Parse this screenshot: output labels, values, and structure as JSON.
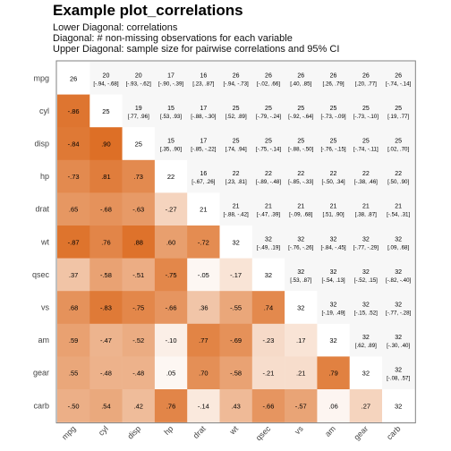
{
  "chart_data": {
    "type": "heatmap",
    "title": "Example plot_correlations",
    "subtitle_lines": [
      "Lower Diagonal: correlations",
      "Diagonal: # non-missing observations for each variable",
      "Upper Diagonal: sample size for pairwise correlations and 95% CI"
    ],
    "variables": [
      "mpg",
      "cyl",
      "disp",
      "hp",
      "drat",
      "wt",
      "qsec",
      "vs",
      "am",
      "gear",
      "carb"
    ],
    "lower_labels": [
      [],
      [
        "-.86"
      ],
      [
        "-.84",
        ".90"
      ],
      [
        "-.73",
        ".81",
        ".73"
      ],
      [
        ".65",
        "-.68",
        "-.63",
        "-.27"
      ],
      [
        "-.87",
        ".76",
        ".88",
        ".60",
        "-.72"
      ],
      [
        ".37",
        "-.58",
        "-.51",
        "-.75",
        "-.05",
        "-.17"
      ],
      [
        ".68",
        "-.83",
        "-.75",
        "-.66",
        ".36",
        "-.55",
        ".74"
      ],
      [
        ".59",
        "-.47",
        "-.52",
        "-.10",
        ".77",
        "-.69",
        "-.23",
        ".17"
      ],
      [
        ".55",
        "-.48",
        "-.48",
        ".05",
        ".70",
        "-.58",
        "-.21",
        ".21",
        ".79"
      ],
      [
        "-.50",
        ".54",
        ".42",
        ".76",
        "-.14",
        ".43",
        "-.66",
        "-.57",
        ".06",
        ".27"
      ]
    ],
    "lower_values": [
      [],
      [
        -0.86
      ],
      [
        -0.84,
        0.9
      ],
      [
        -0.73,
        0.81,
        0.73
      ],
      [
        0.65,
        -0.68,
        -0.63,
        -0.27
      ],
      [
        -0.87,
        0.76,
        0.88,
        0.6,
        -0.72
      ],
      [
        0.37,
        -0.58,
        -0.51,
        -0.75,
        -0.05,
        -0.17
      ],
      [
        0.68,
        -0.83,
        -0.75,
        -0.66,
        0.36,
        -0.55,
        0.74
      ],
      [
        0.59,
        -0.47,
        -0.52,
        -0.1,
        0.77,
        -0.69,
        -0.23,
        0.17
      ],
      [
        0.55,
        -0.48,
        -0.48,
        0.05,
        0.7,
        -0.58,
        -0.21,
        0.21,
        0.79
      ],
      [
        -0.5,
        0.54,
        0.42,
        0.76,
        -0.14,
        0.43,
        -0.66,
        -0.57,
        0.06,
        0.27
      ]
    ],
    "diagonal": [
      "26",
      "25",
      "25",
      "22",
      "21",
      "32",
      "32",
      "32",
      "32",
      "32",
      "32"
    ],
    "upper": [
      [
        null,
        [
          "20",
          "[-.94, -.68]"
        ],
        [
          "20",
          "[-.93, -.62]"
        ],
        [
          "17",
          "[-.90, -.39]"
        ],
        [
          "16",
          "[.23, .87]"
        ],
        [
          "26",
          "[-.94, -.73]"
        ],
        [
          "26",
          "[-.02, .66]"
        ],
        [
          "26",
          "[.40, .85]"
        ],
        [
          "26",
          "[.26, .79]"
        ],
        [
          "26",
          "[.20, .77]"
        ],
        [
          "26",
          "[-.74, -.14]"
        ]
      ],
      [
        null,
        null,
        [
          "19",
          "[.77, .96]"
        ],
        [
          "15",
          "[.53, .93]"
        ],
        [
          "17",
          "[-.88, -.30]"
        ],
        [
          "25",
          "[.52, .89]"
        ],
        [
          "25",
          "[-.79, -.24]"
        ],
        [
          "25",
          "[-.92, -.64]"
        ],
        [
          "25",
          "[-.73, -.09]"
        ],
        [
          "25",
          "[-.73, -.10]"
        ],
        [
          "25",
          "[.19, .77]"
        ]
      ],
      [
        null,
        null,
        null,
        [
          "15",
          "[.35, .90]"
        ],
        [
          "17",
          "[-.85, -.22]"
        ],
        [
          "25",
          "[.74, .94]"
        ],
        [
          "25",
          "[-.75, -.14]"
        ],
        [
          "25",
          "[-.88, -.50]"
        ],
        [
          "25",
          "[-.76, -.15]"
        ],
        [
          "25",
          "[-.74, -.11]"
        ],
        [
          "25",
          "[.02, .70]"
        ]
      ],
      [
        null,
        null,
        null,
        null,
        [
          "16",
          "[-.67, .26]"
        ],
        [
          "22",
          "[.23, .81]"
        ],
        [
          "22",
          "[-.89, -.48]"
        ],
        [
          "22",
          "[-.85, -.33]"
        ],
        [
          "22",
          "[-.50, .34]"
        ],
        [
          "22",
          "[-.38, .46]"
        ],
        [
          "22",
          "[.50, .90]"
        ]
      ],
      [
        null,
        null,
        null,
        null,
        null,
        [
          "21",
          "[-.88, -.42]"
        ],
        [
          "21",
          "[-.47, .39]"
        ],
        [
          "21",
          "[-.09, .68]"
        ],
        [
          "21",
          "[.51, .90]"
        ],
        [
          "21",
          "[.38, .87]"
        ],
        [
          "21",
          "[-.54, .31]"
        ]
      ],
      [
        null,
        null,
        null,
        null,
        null,
        null,
        [
          "32",
          "[-.49, .19]"
        ],
        [
          "32",
          "[-.76, -.26]"
        ],
        [
          "32",
          "[-.84, -.45]"
        ],
        [
          "32",
          "[-.77, -.29]"
        ],
        [
          "32",
          "[.09, .68]"
        ]
      ],
      [
        null,
        null,
        null,
        null,
        null,
        null,
        null,
        [
          "32",
          "[.53, .87]"
        ],
        [
          "32",
          "[-.54, .13]"
        ],
        [
          "32",
          "[-.52, .15]"
        ],
        [
          "32",
          "[-.82, -.40]"
        ]
      ],
      [
        null,
        null,
        null,
        null,
        null,
        null,
        null,
        null,
        [
          "32",
          "[-.19, .49]"
        ],
        [
          "32",
          "[-.15, .52]"
        ],
        [
          "32",
          "[-.77, -.28]"
        ]
      ],
      [
        null,
        null,
        null,
        null,
        null,
        null,
        null,
        null,
        null,
        [
          "32",
          "[.62, .89]"
        ],
        [
          "32",
          "[-.30, .40]"
        ]
      ],
      [
        null,
        null,
        null,
        null,
        null,
        null,
        null,
        null,
        null,
        null,
        [
          "32",
          "[-.08, .57]"
        ]
      ],
      [
        null,
        null,
        null,
        null,
        null,
        null,
        null,
        null,
        null,
        null,
        null
      ]
    ],
    "colors": {
      "high": "#d95f0e",
      "low": "#ffffff",
      "panel_border": "#808080",
      "diagonal_fill": "#ffffff",
      "upper_fill": "#f7f7f7"
    },
    "color_scale": "absolute correlation, white to orange",
    "grid": false,
    "legend": "none"
  }
}
